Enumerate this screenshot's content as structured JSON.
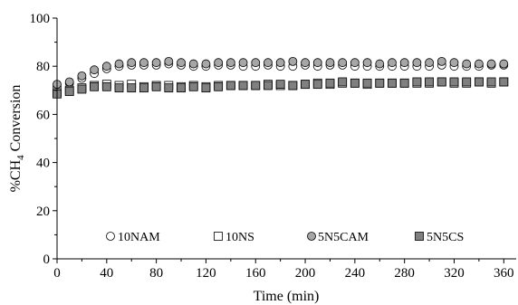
{
  "chart_data": {
    "type": "scatter",
    "title": "",
    "xlabel": "Time (min)",
    "ylabel_parts": [
      "%CH",
      "4",
      " Conversion"
    ],
    "xlim": [
      0,
      370
    ],
    "ylim": [
      0,
      100
    ],
    "xticks": [
      0,
      40,
      80,
      120,
      160,
      200,
      240,
      280,
      320,
      360
    ],
    "yticks": [
      0,
      20,
      40,
      60,
      80,
      100
    ],
    "grid": false,
    "legend_position": "bottom-inside",
    "series": [
      {
        "name": "10NAM",
        "marker": "circle",
        "fill": "#ffffff",
        "x": [
          0,
          10,
          20,
          30,
          40,
          50,
          60,
          70,
          80,
          90,
          100,
          110,
          120,
          130,
          140,
          150,
          160,
          170,
          180,
          190,
          200,
          210,
          220,
          230,
          240,
          250,
          260,
          270,
          280,
          290,
          300,
          310,
          320,
          330,
          340,
          350,
          360
        ],
        "y": [
          71.5,
          73,
          75,
          77,
          79,
          80,
          80.5,
          80.5,
          80.5,
          81,
          80.5,
          80,
          80,
          80.5,
          80.5,
          80,
          80,
          80.5,
          80,
          80,
          80.5,
          80,
          80.5,
          80.5,
          80,
          80,
          80,
          80,
          80,
          80,
          80,
          80.5,
          80,
          80,
          80,
          80.5,
          80.5
        ]
      },
      {
        "name": "10NS",
        "marker": "square",
        "fill": "#ffffff",
        "x": [
          0,
          10,
          20,
          30,
          40,
          50,
          60,
          70,
          80,
          90,
          100,
          110,
          120,
          130,
          140,
          150,
          160,
          170,
          180,
          190,
          200,
          210,
          220,
          230,
          240,
          250,
          260,
          270,
          280,
          290,
          300,
          310,
          320,
          330,
          340,
          350,
          360
        ],
        "y": [
          69,
          70,
          71,
          72,
          72.5,
          72,
          72.5,
          71.5,
          72,
          72,
          71.5,
          72,
          71.5,
          72,
          72,
          72,
          72,
          72.5,
          72,
          72,
          72.5,
          73,
          72.5,
          73,
          73,
          72.5,
          73,
          73,
          73,
          73,
          73,
          73.5,
          73,
          73,
          73.5,
          73,
          73.5
        ]
      },
      {
        "name": "5N5CAM",
        "marker": "circle",
        "fill": "#a6a6a6",
        "x": [
          0,
          10,
          20,
          30,
          40,
          50,
          60,
          70,
          80,
          90,
          100,
          110,
          120,
          130,
          140,
          150,
          160,
          170,
          180,
          190,
          200,
          210,
          220,
          230,
          240,
          250,
          260,
          270,
          280,
          290,
          300,
          310,
          320,
          330,
          340,
          350,
          360
        ],
        "y": [
          72.5,
          73.5,
          76,
          78.5,
          80,
          81,
          81.5,
          81.5,
          81.5,
          82,
          81.5,
          81,
          81,
          81.5,
          81.5,
          81.5,
          81.5,
          81.5,
          81.5,
          82,
          81.5,
          81.5,
          81.5,
          81.5,
          81.5,
          81.5,
          81,
          81.5,
          81.5,
          81.5,
          81.5,
          82,
          81.5,
          81,
          81,
          81,
          81
        ]
      },
      {
        "name": "5N5CS",
        "marker": "square",
        "fill": "#808080",
        "x": [
          0,
          10,
          20,
          30,
          40,
          50,
          60,
          70,
          80,
          90,
          100,
          110,
          120,
          130,
          140,
          150,
          160,
          170,
          180,
          190,
          200,
          210,
          220,
          230,
          240,
          250,
          260,
          270,
          280,
          290,
          300,
          310,
          320,
          330,
          340,
          350,
          360
        ],
        "y": [
          68.5,
          69.5,
          70.5,
          71.5,
          71.5,
          71,
          71,
          71,
          71.5,
          71,
          71,
          71.5,
          71,
          71.5,
          72,
          72,
          72,
          72,
          72.5,
          72,
          72.5,
          72.5,
          73,
          73.5,
          73,
          73,
          73,
          73,
          73,
          73.5,
          73.5,
          73.5,
          73.5,
          73.5,
          73.5,
          73.5,
          73.5
        ]
      }
    ]
  }
}
